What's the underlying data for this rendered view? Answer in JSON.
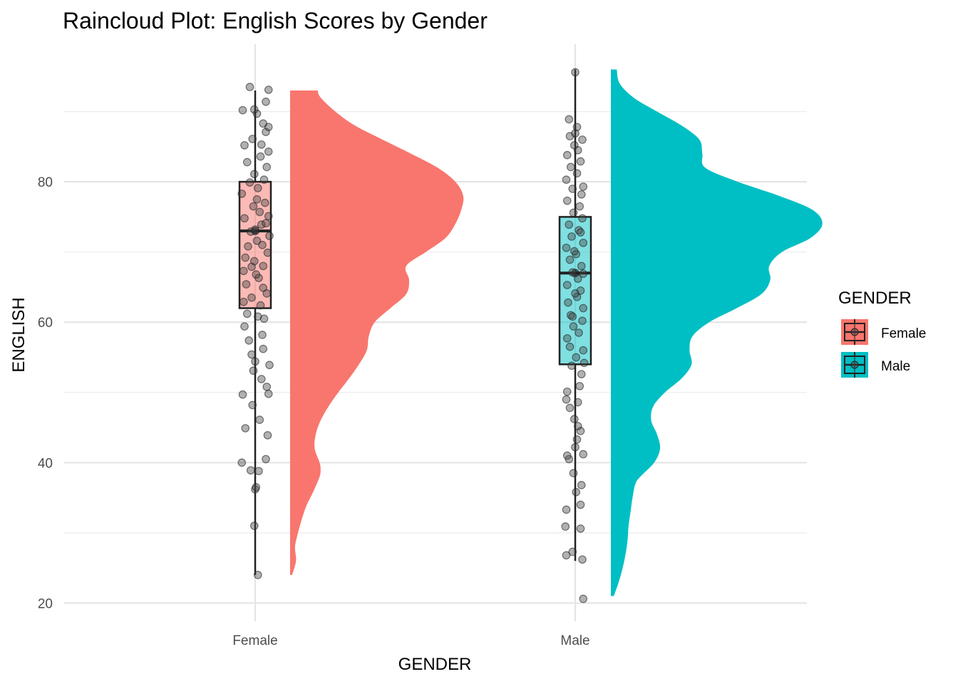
{
  "chart_data": {
    "type": "raincloud",
    "title": "Raincloud Plot: English Scores by Gender",
    "xlabel": "GENDER",
    "ylabel": "ENGLISH",
    "categories": [
      "Female",
      "Male"
    ],
    "ylim": [
      17.4,
      99.6
    ],
    "yticks": [
      20,
      40,
      60,
      80
    ],
    "grid": true,
    "legend": {
      "title": "GENDER",
      "position": "right",
      "entries": [
        "Female",
        "Male"
      ]
    },
    "colors": {
      "Female": "#F8766D",
      "Male": "#00BFC4",
      "point": "#333333",
      "box_line": "#222222"
    },
    "series": [
      {
        "name": "Female",
        "box": {
          "min": 24,
          "q1": 62,
          "median": 73,
          "mean": 73,
          "q3": 80,
          "max": 93
        },
        "density": [
          [
            24,
            0.002
          ],
          [
            26,
            0.006
          ],
          [
            28,
            0.005
          ],
          [
            30,
            0.008
          ],
          [
            32,
            0.012
          ],
          [
            34,
            0.017
          ],
          [
            36,
            0.024
          ],
          [
            38,
            0.03
          ],
          [
            39,
            0.031
          ],
          [
            40,
            0.03
          ],
          [
            42,
            0.025
          ],
          [
            44,
            0.026
          ],
          [
            46,
            0.031
          ],
          [
            48,
            0.039
          ],
          [
            50,
            0.049
          ],
          [
            52,
            0.06
          ],
          [
            54,
            0.07
          ],
          [
            56,
            0.078
          ],
          [
            58,
            0.08
          ],
          [
            60,
            0.086
          ],
          [
            62,
            0.102
          ],
          [
            64,
            0.118
          ],
          [
            66,
            0.121
          ],
          [
            68,
            0.118
          ],
          [
            70,
            0.138
          ],
          [
            72,
            0.158
          ],
          [
            74,
            0.168
          ],
          [
            76,
            0.174
          ],
          [
            78,
            0.176
          ],
          [
            80,
            0.168
          ],
          [
            82,
            0.15
          ],
          [
            84,
            0.123
          ],
          [
            86,
            0.094
          ],
          [
            88,
            0.066
          ],
          [
            90,
            0.046
          ],
          [
            92,
            0.031
          ],
          [
            93,
            0.028
          ]
        ],
        "points": [
          [
            24,
            0.3
          ],
          [
            31,
            -0.1
          ],
          [
            36.2,
            0.0
          ],
          [
            36.5,
            0.1
          ],
          [
            38.8,
            0.4
          ],
          [
            38.9,
            -0.5
          ],
          [
            40.5,
            1.2
          ],
          [
            40,
            -1.5
          ],
          [
            43.9,
            1.4
          ],
          [
            44.9,
            -1.1
          ],
          [
            46.1,
            0.5
          ],
          [
            48.2,
            -0.3
          ],
          [
            49.7,
            -1.4
          ],
          [
            49.8,
            1.5
          ],
          [
            50.8,
            1.3
          ],
          [
            51.9,
            0.7
          ],
          [
            53.1,
            -0.2
          ],
          [
            53.9,
            1.6
          ],
          [
            54.4,
            0.0
          ],
          [
            55.4,
            -0.4
          ],
          [
            56.2,
            0.9
          ],
          [
            57.4,
            -0.7
          ],
          [
            58.2,
            0.8
          ],
          [
            59.4,
            -1.2
          ],
          [
            60.5,
            1.0
          ],
          [
            60.8,
            0.3
          ],
          [
            61.2,
            -0.9
          ],
          [
            62.4,
            0.6
          ],
          [
            63.5,
            -0.4
          ],
          [
            64.1,
            1.3
          ],
          [
            65.4,
            -1.0
          ],
          [
            66.3,
            0.4
          ],
          [
            67.3,
            -1.3
          ],
          [
            68.0,
            0.9
          ],
          [
            68.7,
            -0.1
          ],
          [
            69.9,
            1.4
          ],
          [
            70.8,
            -0.8
          ],
          [
            71.6,
            0.2
          ],
          [
            72.3,
            1.6
          ],
          [
            72.9,
            -0.5
          ],
          [
            73.2,
            0.0
          ],
          [
            73.9,
            0.7
          ],
          [
            74.8,
            -1.2
          ],
          [
            75.7,
            0.5
          ],
          [
            76.5,
            -0.2
          ],
          [
            77.0,
            1.1
          ],
          [
            78.3,
            -1.5
          ],
          [
            79.1,
            0.3
          ],
          [
            79.9,
            -0.6
          ],
          [
            80.3,
            1.0
          ],
          [
            81.1,
            -0.1
          ],
          [
            82.1,
            1.3
          ],
          [
            82.8,
            -0.9
          ],
          [
            83.6,
            0.6
          ],
          [
            84.3,
            1.5
          ],
          [
            85.2,
            -1.2
          ],
          [
            85.3,
            0.7
          ],
          [
            86.1,
            -0.3
          ],
          [
            87.1,
            1.2
          ],
          [
            87.8,
            1.5
          ],
          [
            88.3,
            0.9
          ],
          [
            89.7,
            0.2
          ],
          [
            90.2,
            -1.4
          ],
          [
            90.3,
            -0.1
          ],
          [
            91.4,
            1.2
          ],
          [
            93.1,
            1.5
          ],
          [
            93.5,
            -0.6
          ],
          [
            66.8,
            0.1
          ],
          [
            64.9,
            0.9
          ],
          [
            69.2,
            -1.1
          ],
          [
            74.1,
            1.2
          ],
          [
            77.5,
            0.2
          ],
          [
            71.0,
            0.8
          ],
          [
            75.1,
            1.5
          ],
          [
            67.9,
            -0.4
          ],
          [
            62.9,
            -1.3
          ]
        ]
      },
      {
        "name": "Male",
        "box": {
          "min": 26,
          "q1": 54,
          "median": 67,
          "mean": 67,
          "q3": 75,
          "max": 96
        },
        "density": [
          [
            21,
            0.003
          ],
          [
            23,
            0.008
          ],
          [
            25,
            0.012
          ],
          [
            27,
            0.015
          ],
          [
            29,
            0.017
          ],
          [
            31,
            0.018
          ],
          [
            33,
            0.02
          ],
          [
            35,
            0.022
          ],
          [
            37,
            0.025
          ],
          [
            38,
            0.03
          ],
          [
            40,
            0.044
          ],
          [
            42,
            0.05
          ],
          [
            44,
            0.047
          ],
          [
            46,
            0.041
          ],
          [
            48,
            0.043
          ],
          [
            50,
            0.055
          ],
          [
            52,
            0.072
          ],
          [
            54,
            0.082
          ],
          [
            56,
            0.08
          ],
          [
            58,
            0.083
          ],
          [
            60,
            0.1
          ],
          [
            62,
            0.128
          ],
          [
            64,
            0.153
          ],
          [
            66,
            0.162
          ],
          [
            68,
            0.161
          ],
          [
            70,
            0.174
          ],
          [
            72,
            0.203
          ],
          [
            74,
            0.215
          ],
          [
            76,
            0.205
          ],
          [
            78,
            0.171
          ],
          [
            80,
            0.129
          ],
          [
            82,
            0.096
          ],
          [
            84,
            0.093
          ],
          [
            86,
            0.09
          ],
          [
            88,
            0.072
          ],
          [
            90,
            0.047
          ],
          [
            92,
            0.023
          ],
          [
            94,
            0.009
          ],
          [
            96,
            0.006
          ]
        ],
        "points": [
          [
            20.6,
            0.9
          ],
          [
            26.2,
            0.8
          ],
          [
            26.8,
            -1.0
          ],
          [
            27.3,
            -0.3
          ],
          [
            30.6,
            0.6
          ],
          [
            30.9,
            -1.1
          ],
          [
            33.3,
            -1.0
          ],
          [
            34.0,
            0.6
          ],
          [
            35.8,
            0.1
          ],
          [
            36.8,
            0.7
          ],
          [
            38.5,
            -0.2
          ],
          [
            40.5,
            -0.7
          ],
          [
            41.0,
            -0.9
          ],
          [
            41.2,
            0.9
          ],
          [
            42.2,
            0.0
          ],
          [
            43.3,
            0.2
          ],
          [
            44.5,
            0.6
          ],
          [
            45.2,
            0.3
          ],
          [
            46.2,
            -0.1
          ],
          [
            47.8,
            -0.6
          ],
          [
            48.6,
            0.3
          ],
          [
            49.0,
            -1.0
          ],
          [
            50.1,
            -0.9
          ],
          [
            50.9,
            0.5
          ],
          [
            52.6,
            0.7
          ],
          [
            53.8,
            -0.4
          ],
          [
            54.2,
            1.0
          ],
          [
            55.0,
            0.1
          ],
          [
            56.0,
            0.9
          ],
          [
            56.5,
            -0.6
          ],
          [
            57.7,
            -0.9
          ],
          [
            58.5,
            0.4
          ],
          [
            59.4,
            -0.2
          ],
          [
            60.2,
            0.8
          ],
          [
            61.0,
            -0.5
          ],
          [
            62.0,
            0.9
          ],
          [
            62.8,
            -0.8
          ],
          [
            63.6,
            0.2
          ],
          [
            64.5,
            0.6
          ],
          [
            65.3,
            -0.9
          ],
          [
            66.2,
            0.3
          ],
          [
            67.1,
            -0.3
          ],
          [
            68.0,
            0.7
          ],
          [
            68.9,
            -0.6
          ],
          [
            69.7,
            0.1
          ],
          [
            70.6,
            -1.0
          ],
          [
            71.3,
            0.9
          ],
          [
            72.2,
            -0.4
          ],
          [
            73.1,
            0.4
          ],
          [
            73.9,
            -0.7
          ],
          [
            74.8,
            0.8
          ],
          [
            75.6,
            -0.2
          ],
          [
            76.5,
            0.5
          ],
          [
            77.3,
            -0.9
          ],
          [
            78.2,
            0.7
          ],
          [
            79.0,
            -0.3
          ],
          [
            79.3,
            0.9
          ],
          [
            80.3,
            -1.0
          ],
          [
            81.2,
            0.2
          ],
          [
            82.1,
            -0.5
          ],
          [
            82.9,
            0.6
          ],
          [
            83.8,
            -0.9
          ],
          [
            84.5,
            0.3
          ],
          [
            85.2,
            -0.1
          ],
          [
            86.0,
            0.8
          ],
          [
            86.5,
            -0.6
          ],
          [
            86.9,
            0.0
          ],
          [
            87.8,
            0.2
          ],
          [
            88.9,
            -0.7
          ],
          [
            95.6,
            0.0
          ],
          [
            64.1,
            0.0
          ],
          [
            66.9,
            0.9
          ],
          [
            70.1,
            -0.1
          ],
          [
            72.8,
            0.6
          ],
          [
            60.8,
            -0.3
          ]
        ]
      }
    ]
  }
}
